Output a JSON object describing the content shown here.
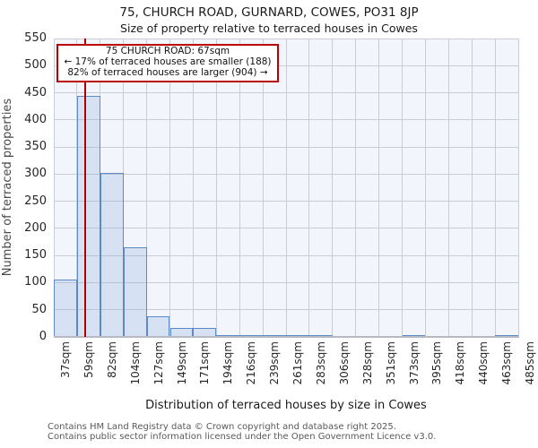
{
  "chart_data": {
    "type": "bar",
    "title": "75, CHURCH ROAD, GURNARD, COWES, PO31 8JP",
    "subtitle": "Size of property relative to terraced houses in Cowes",
    "xlabel": "Distribution of terraced houses by size in Cowes",
    "ylabel": "Number of terraced properties",
    "categories": [
      "37sqm",
      "59sqm",
      "82sqm",
      "104sqm",
      "127sqm",
      "149sqm",
      "171sqm",
      "194sqm",
      "216sqm",
      "239sqm",
      "261sqm",
      "283sqm",
      "306sqm",
      "328sqm",
      "351sqm",
      "373sqm",
      "395sqm",
      "418sqm",
      "440sqm",
      "463sqm",
      "485sqm"
    ],
    "bin_edges_sqm": [
      37,
      59,
      82,
      104,
      127,
      149,
      171,
      194,
      216,
      239,
      261,
      283,
      306,
      328,
      351,
      373,
      395,
      418,
      440,
      463,
      485
    ],
    "values": [
      105,
      445,
      303,
      165,
      38,
      16,
      16,
      4,
      2,
      2,
      2,
      2,
      0,
      0,
      0,
      2,
      0,
      0,
      0,
      2
    ],
    "ylim": [
      0,
      550
    ],
    "ytick_step": 50,
    "grid": true,
    "legend": null,
    "marker_line": {
      "sqm": 67,
      "color": "#b00000"
    },
    "annotation": {
      "lines": [
        "75 CHURCH ROAD: 67sqm",
        "← 17% of terraced houses are smaller (188)",
        "82% of terraced houses are larger (904) →"
      ],
      "border_color": "#bb0000"
    },
    "colors": {
      "bar_fill_base": "#86a9df",
      "bar_border": "#5b8ac5",
      "plot_bg": "#f2f5fb",
      "gridline": "#c9ccd3",
      "marker_line": "#b00000",
      "annotation_border": "#bb0000"
    }
  },
  "footer": {
    "lines": [
      "Contains HM Land Registry data © Crown copyright and database right 2025.",
      "Contains public sector information licensed under the Open Government Licence v3.0."
    ]
  }
}
